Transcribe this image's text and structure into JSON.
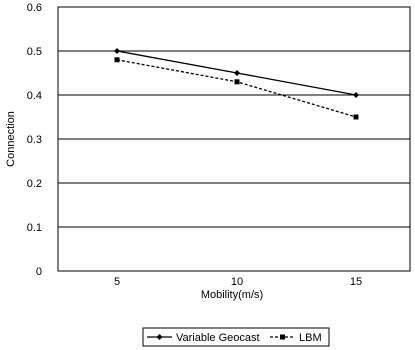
{
  "chart_data": {
    "type": "line",
    "title": "",
    "xlabel": "Mobility(m/s)",
    "ylabel": "Connection",
    "x": [
      5,
      10,
      15
    ],
    "ylim": [
      0,
      0.6
    ],
    "y_ticks": [
      "0",
      "0.1",
      "0.2",
      "0.3",
      "0.4",
      "0.5",
      "0.6"
    ],
    "x_ticks": [
      "5",
      "10",
      "15"
    ],
    "grid": true,
    "legend_position": "bottom",
    "series": [
      {
        "name": "Variable Geocast",
        "values": [
          0.5,
          0.45,
          0.4
        ],
        "style": "solid",
        "marker": "diamond",
        "color": "#000000"
      },
      {
        "name": "LBM",
        "values": [
          0.48,
          0.43,
          0.35
        ],
        "style": "dashed",
        "marker": "square",
        "color": "#000000"
      }
    ]
  }
}
